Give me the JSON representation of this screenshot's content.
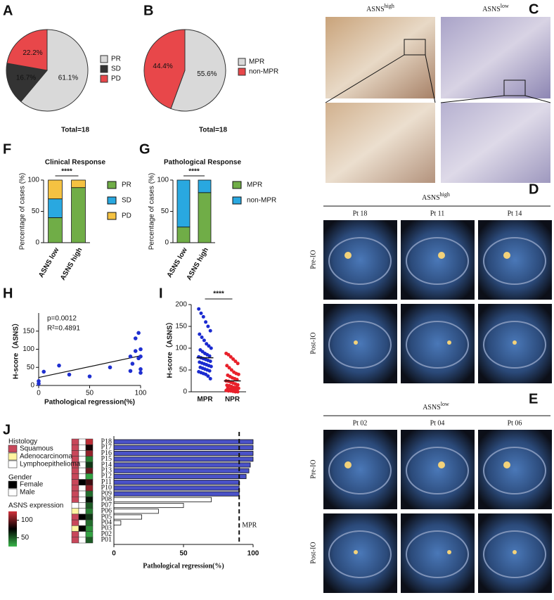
{
  "chart_data": [
    {
      "type": "pie",
      "panel": "A",
      "categories": [
        "PR",
        "SD",
        "PD"
      ],
      "values": [
        61.1,
        16.7,
        22.2
      ],
      "value_labels": [
        "61.1%",
        "16.7%",
        "22.2%"
      ],
      "colors": [
        "#d9d9d9",
        "#333333",
        "#e8474a"
      ],
      "caption": "Total=18",
      "legend": "right"
    },
    {
      "type": "pie",
      "panel": "B",
      "categories": [
        "MPR",
        "non-MPR"
      ],
      "values": [
        55.6,
        44.4
      ],
      "value_labels": [
        "55.6%",
        "44.4%"
      ],
      "colors": [
        "#d9d9d9",
        "#e8474a"
      ],
      "caption": "Total=18",
      "legend": "right"
    },
    {
      "type": "stacked_bar",
      "panel": "F",
      "title": "Clinical Response",
      "categories": [
        "ASNS low",
        "ASNS high"
      ],
      "series": [
        {
          "name": "PR",
          "color": "#70ad47",
          "values": [
            40,
            88
          ]
        },
        {
          "name": "SD",
          "color": "#29a8e0",
          "values": [
            30,
            0
          ]
        },
        {
          "name": "PD",
          "color": "#f5c242",
          "values": [
            30,
            12
          ]
        }
      ],
      "ylim": [
        0,
        100
      ],
      "yticks": [
        0,
        50,
        100
      ],
      "y_label": "Percentage of cases (%)",
      "significance": "****",
      "legend": "right"
    },
    {
      "type": "stacked_bar",
      "panel": "G",
      "title": "Pathological Response",
      "categories": [
        "ASNS low",
        "ASNS high"
      ],
      "series": [
        {
          "name": "MPR",
          "color": "#70ad47",
          "values": [
            25,
            80
          ]
        },
        {
          "name": "non-MPR",
          "color": "#29a8e0",
          "values": [
            75,
            20
          ]
        }
      ],
      "ylim": [
        0,
        100
      ],
      "yticks": [
        0,
        50,
        100
      ],
      "y_label": "Percentage of cases (%)",
      "significance": "****",
      "legend": "right"
    },
    {
      "type": "scatter",
      "panel": "H",
      "x": [
        0,
        0,
        5,
        20,
        30,
        50,
        70,
        90,
        90,
        92,
        95,
        95,
        98,
        98,
        100,
        100,
        100,
        100
      ],
      "y": [
        5,
        12,
        38,
        55,
        30,
        25,
        50,
        80,
        40,
        60,
        130,
        95,
        145,
        75,
        100,
        80,
        45,
        35
      ],
      "color": "#1f2fd0",
      "fit": {
        "x": [
          0,
          100
        ],
        "y": [
          22,
          82
        ]
      },
      "xlim": [
        0,
        100
      ],
      "xticks": [
        0,
        50,
        100
      ],
      "ylim": [
        0,
        200
      ],
      "yticks": [
        0,
        50,
        100,
        150
      ],
      "x_label": "Pathological regression(%)",
      "y_label": "H-score（ASNS）",
      "annotations": [
        "p=0.0012",
        "R²=0.4891"
      ]
    },
    {
      "type": "strip",
      "panel": "I",
      "series": [
        {
          "name": "MPR",
          "color": "#1a2ad0",
          "values": [
            190,
            180,
            172,
            160,
            150,
            140,
            132,
            125,
            118,
            110,
            105,
            100,
            96,
            92,
            88,
            85,
            82,
            80,
            78,
            76,
            74,
            72,
            70,
            68,
            66,
            64,
            62,
            60,
            58,
            56,
            54,
            52,
            50,
            48,
            46,
            44,
            42,
            40,
            36,
            30
          ]
        },
        {
          "name": "NPR",
          "color": "#e8202a",
          "values": [
            88,
            85,
            80,
            75,
            70,
            65,
            60,
            55,
            50,
            45,
            42,
            40,
            38,
            35,
            32,
            30,
            28,
            25,
            24,
            22,
            20,
            18,
            16,
            15,
            14,
            12,
            10,
            10,
            8,
            8,
            6,
            5,
            5,
            4,
            3,
            2,
            2,
            1,
            0,
            0
          ]
        }
      ],
      "means": [
        78,
        25
      ],
      "ylim": [
        0,
        200
      ],
      "yticks": [
        0,
        50,
        100,
        150,
        200
      ],
      "y_label": "H-score（ASNS）",
      "significance": "****"
    },
    {
      "type": "hbar",
      "panel": "J",
      "categories": [
        "P18",
        "P17",
        "P16",
        "P15",
        "P14",
        "P13",
        "P12",
        "P11",
        "P10",
        "P09",
        "P08",
        "P07",
        "P06",
        "P05",
        "P04",
        "P03",
        "P02",
        "P01"
      ],
      "values": [
        100,
        100,
        100,
        100,
        98,
        97,
        95,
        90,
        90,
        90,
        70,
        50,
        32,
        20,
        5,
        0,
        0,
        0
      ],
      "colors": [
        "#4a52c8",
        "#4a52c8",
        "#4a52c8",
        "#4a52c8",
        "#4a52c8",
        "#4a52c8",
        "#4a52c8",
        "#4a52c8",
        "#4a52c8",
        "#4a52c8",
        "#ffffff",
        "#ffffff",
        "#ffffff",
        "#ffffff",
        "#ffffff",
        "#ffffff",
        "#ffffff",
        "#ffffff"
      ],
      "threshold": {
        "value": 90,
        "label": "MPR"
      },
      "xlim": [
        0,
        100
      ],
      "xticks": [
        0,
        50,
        100
      ],
      "x_label": "Pathological regression(%)",
      "tracks": [
        {
          "name": "Histology",
          "labels": [
            "Squamous",
            "Adenocarcinoma",
            "Lymphoepithelioma"
          ],
          "colors": [
            "#c8475a",
            "#fff5a0",
            "#ffffff"
          ],
          "values": [
            "Squamous",
            "Squamous",
            "Squamous",
            "Squamous",
            "Squamous",
            "Squamous",
            "Squamous",
            "Squamous",
            "Squamous",
            "Squamous",
            "Squamous",
            "Lymphoepithelioma",
            "Adenocarcinoma",
            "Squamous",
            "Squamous",
            "Adenocarcinoma",
            "Squamous",
            "Squamous"
          ]
        },
        {
          "name": "Gender",
          "labels": [
            "Female",
            "Male"
          ],
          "colors": [
            "#000000",
            "#ffffff"
          ],
          "values": [
            "Male",
            "Male",
            "Male",
            "Male",
            "Male",
            "Male",
            "Male",
            "Female",
            "Male",
            "Male",
            "Male",
            "Male",
            "Male",
            "Female",
            "Male",
            "Female",
            "Male",
            "Male"
          ]
        },
        {
          "name": "ASNS expression",
          "lim": [
            25,
            125
          ],
          "ticks": [
            100,
            50
          ],
          "colors": [
            "#39b54a",
            "#000000",
            "#d2323c"
          ],
          "values": [
            120,
            80,
            110,
            40,
            60,
            100,
            30,
            90,
            110,
            45,
            70,
            50,
            40,
            60,
            45,
            35,
            30,
            50
          ]
        }
      ]
    }
  ],
  "image_panels": [
    {
      "panel": "C",
      "columns": [
        {
          "base": "ASNS",
          "sup": "high"
        },
        {
          "base": "ASNS",
          "sup": "low"
        }
      ]
    },
    {
      "panel": "D",
      "title": {
        "base": "ASNS",
        "sup": "high"
      },
      "columns": [
        "Pt 18",
        "Pt 11",
        "Pt 14"
      ],
      "rows": [
        "Pre-IO",
        "Post-IO"
      ]
    },
    {
      "panel": "E",
      "title": {
        "base": "ASNS",
        "sup": "low"
      },
      "columns": [
        "Pt 02",
        "Pt 04",
        "Pt 06"
      ],
      "rows": [
        "Pre-IO",
        "Post-IO"
      ]
    }
  ]
}
